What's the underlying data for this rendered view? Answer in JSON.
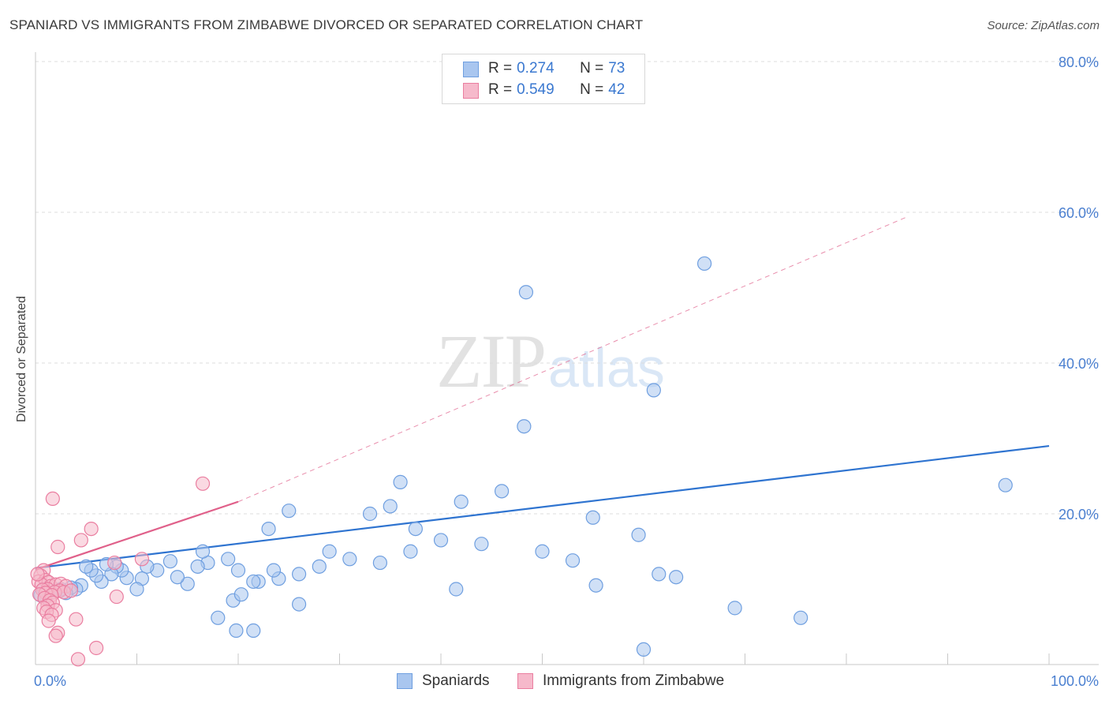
{
  "header": {
    "title": "SPANIARD VS IMMIGRANTS FROM ZIMBABWE DIVORCED OR SEPARATED CORRELATION CHART",
    "source": "Source: ZipAtlas.com"
  },
  "watermark": {
    "zip": "ZIP",
    "atlas": "atlas"
  },
  "legend_top": {
    "rows": [
      {
        "r_label": "R =",
        "r_value": "0.274",
        "n_label": "N =",
        "n_value": "73"
      },
      {
        "r_label": "R =",
        "r_value": "0.549",
        "n_label": "N =",
        "n_value": "42"
      }
    ]
  },
  "legend_bottom": {
    "series1": "Spaniards",
    "series2": "Immigrants from Zimbabwe"
  },
  "colors": {
    "blue_fill": "#a9c6ef",
    "blue_stroke": "#6f9fe0",
    "blue_line": "#2f74d0",
    "pink_fill": "#f6b9cb",
    "pink_stroke": "#ea7ea0",
    "pink_line": "#e0608a",
    "grid": "#dcdcdc",
    "axis_label": "#4a7fd0"
  },
  "chart_data": {
    "type": "scatter",
    "title": "SPANIARD VS IMMIGRANTS FROM ZIMBABWE DIVORCED OR SEPARATED CORRELATION CHART",
    "xlabel": "",
    "ylabel": "Divorced or Separated",
    "xlim": [
      0,
      100
    ],
    "ylim": [
      0,
      80
    ],
    "x_tick_labels": [
      "0.0%",
      "100.0%"
    ],
    "y_ticks": [
      20,
      40,
      60,
      80
    ],
    "y_tick_labels": [
      "20.0%",
      "40.0%",
      "60.0%",
      "80.0%"
    ],
    "grid": true,
    "series": [
      {
        "name": "Spaniards",
        "R": 0.274,
        "N": 73,
        "trend": {
          "x": [
            0,
            100
          ],
          "y": [
            12.8,
            29.0
          ],
          "style": "solid"
        },
        "points": [
          [
            66.0,
            53.2
          ],
          [
            48.4,
            49.4
          ],
          [
            61.0,
            36.4
          ],
          [
            48.2,
            31.6
          ],
          [
            36.0,
            24.2
          ],
          [
            35.0,
            21.0
          ],
          [
            33.0,
            20.0
          ],
          [
            25.0,
            20.4
          ],
          [
            29.0,
            15.0
          ],
          [
            23.0,
            18.0
          ],
          [
            95.7,
            23.8
          ],
          [
            46.0,
            23.0
          ],
          [
            42.0,
            21.6
          ],
          [
            37.5,
            18.0
          ],
          [
            37.0,
            15.0
          ],
          [
            31.0,
            14.0
          ],
          [
            28.0,
            13.0
          ],
          [
            26.0,
            12.0
          ],
          [
            24.0,
            11.4
          ],
          [
            23.5,
            12.5
          ],
          [
            22.0,
            11.0
          ],
          [
            20.0,
            12.5
          ],
          [
            19.5,
            8.5
          ],
          [
            19.0,
            14.0
          ],
          [
            17.0,
            13.5
          ],
          [
            16.5,
            15.0
          ],
          [
            16.0,
            13.0
          ],
          [
            15.0,
            10.7
          ],
          [
            14.0,
            11.6
          ],
          [
            13.3,
            13.7
          ],
          [
            12.0,
            12.5
          ],
          [
            11.0,
            13.0
          ],
          [
            10.5,
            11.4
          ],
          [
            10.0,
            10.0
          ],
          [
            9.0,
            11.5
          ],
          [
            8.5,
            12.5
          ],
          [
            8.0,
            13.0
          ],
          [
            7.5,
            12.0
          ],
          [
            7.0,
            13.3
          ],
          [
            6.5,
            11.0
          ],
          [
            6.0,
            11.8
          ],
          [
            5.5,
            12.5
          ],
          [
            5.0,
            13.0
          ],
          [
            4.5,
            10.5
          ],
          [
            4.0,
            10.0
          ],
          [
            3.5,
            10.2
          ],
          [
            3.0,
            9.5
          ],
          [
            2.5,
            10.0
          ],
          [
            2.0,
            9.8
          ],
          [
            1.5,
            9.5
          ],
          [
            1.0,
            9.0
          ],
          [
            0.8,
            10.0
          ],
          [
            0.5,
            9.2
          ],
          [
            61.5,
            12.0
          ],
          [
            59.5,
            17.2
          ],
          [
            55.0,
            19.5
          ],
          [
            53.0,
            13.8
          ],
          [
            50.0,
            15.0
          ],
          [
            44.0,
            16.0
          ],
          [
            40.0,
            16.5
          ],
          [
            41.5,
            10.0
          ],
          [
            34.0,
            13.5
          ],
          [
            26.0,
            8.0
          ],
          [
            21.5,
            11.0
          ],
          [
            20.3,
            9.3
          ],
          [
            18.0,
            6.2
          ],
          [
            19.8,
            4.5
          ],
          [
            21.5,
            4.5
          ],
          [
            69.0,
            7.5
          ],
          [
            75.5,
            6.2
          ],
          [
            63.2,
            11.6
          ],
          [
            60.0,
            2.0
          ],
          [
            55.3,
            10.5
          ]
        ]
      },
      {
        "name": "Immigrants from Zimbabwe",
        "R": 0.549,
        "N": 42,
        "trend": {
          "x": [
            0,
            20
          ],
          "y": [
            12.6,
            21.6
          ],
          "style": "solid",
          "extended_x": [
            20,
            86
          ],
          "extended_y": [
            21.6,
            59.4
          ],
          "extended_style": "dashed"
        },
        "points": [
          [
            16.5,
            24.0
          ],
          [
            1.7,
            22.0
          ],
          [
            5.5,
            18.0
          ],
          [
            4.5,
            16.5
          ],
          [
            2.2,
            15.6
          ],
          [
            10.5,
            14.0
          ],
          [
            7.8,
            13.5
          ],
          [
            0.8,
            12.5
          ],
          [
            0.5,
            11.8
          ],
          [
            0.3,
            11.0
          ],
          [
            1.0,
            11.2
          ],
          [
            1.3,
            10.9
          ],
          [
            0.6,
            10.6
          ],
          [
            1.5,
            10.4
          ],
          [
            2.0,
            10.6
          ],
          [
            2.5,
            10.7
          ],
          [
            3.0,
            10.4
          ],
          [
            1.2,
            10.0
          ],
          [
            0.7,
            9.9
          ],
          [
            2.4,
            9.8
          ],
          [
            1.9,
            9.6
          ],
          [
            1.0,
            9.5
          ],
          [
            0.4,
            9.3
          ],
          [
            2.8,
            9.6
          ],
          [
            1.6,
            9.2
          ],
          [
            0.9,
            8.8
          ],
          [
            1.4,
            8.5
          ],
          [
            1.7,
            8.2
          ],
          [
            1.2,
            7.8
          ],
          [
            0.8,
            7.5
          ],
          [
            2.0,
            7.2
          ],
          [
            1.1,
            7.0
          ],
          [
            1.6,
            6.6
          ],
          [
            4.0,
            6.0
          ],
          [
            1.3,
            5.8
          ],
          [
            2.2,
            4.2
          ],
          [
            2.0,
            3.8
          ],
          [
            6.0,
            2.2
          ],
          [
            4.2,
            0.7
          ],
          [
            3.5,
            9.8
          ],
          [
            8.0,
            9.0
          ],
          [
            0.2,
            12.0
          ]
        ]
      }
    ]
  }
}
